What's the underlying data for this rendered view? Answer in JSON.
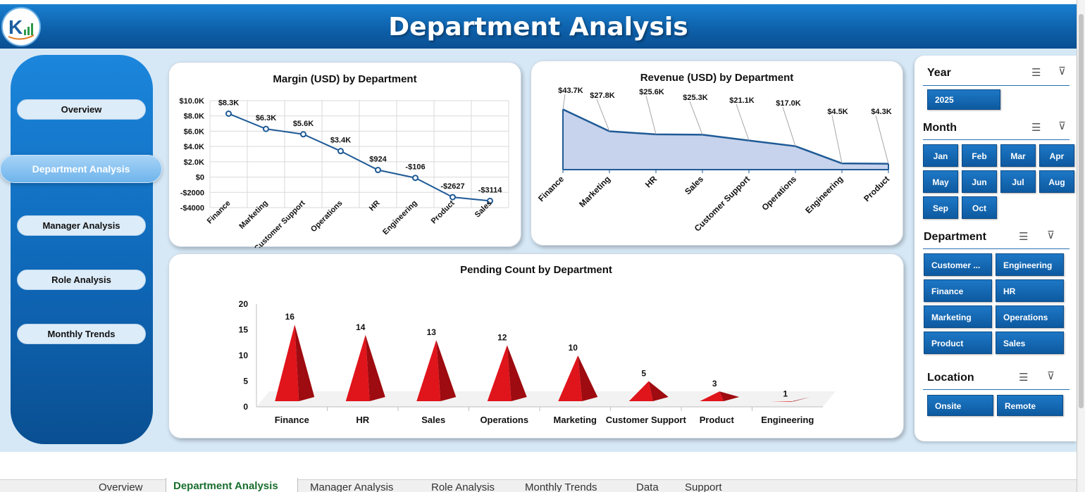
{
  "header": {
    "title": "Department Analysis"
  },
  "nav": {
    "items": [
      {
        "label": "Overview"
      },
      {
        "label": "Department Analysis"
      },
      {
        "label": "Manager Analysis"
      },
      {
        "label": "Role Analysis"
      },
      {
        "label": "Monthly Trends"
      }
    ]
  },
  "slicers": {
    "year": {
      "title": "Year",
      "items": [
        "2025"
      ]
    },
    "month": {
      "title": "Month",
      "items": [
        "Jan",
        "Feb",
        "Mar",
        "Apr",
        "May",
        "Jun",
        "Jul",
        "Aug",
        "Sep",
        "Oct"
      ]
    },
    "department": {
      "title": "Department",
      "items": [
        "Customer ...",
        "Engineering",
        "Finance",
        "HR",
        "Marketing",
        "Operations",
        "Product",
        "Sales"
      ]
    },
    "location": {
      "title": "Location",
      "items": [
        "Onsite",
        "Remote"
      ]
    }
  },
  "sheet_tabs": [
    "Overview",
    "Department Analysis",
    "Manager Analysis",
    "Role Analysis",
    "Monthly Trends",
    "Data",
    "Support"
  ],
  "chart_data": [
    {
      "type": "line",
      "title": "Margin (USD) by Department",
      "categories": [
        "Finance",
        "Marketing",
        "Customer Support",
        "Operations",
        "HR",
        "Engineering",
        "Product",
        "Sales"
      ],
      "values": [
        8300,
        6300,
        5600,
        3400,
        924,
        -106,
        -2627,
        -3114
      ],
      "data_labels": [
        "$8.3K",
        "$6.3K",
        "$5.6K",
        "$3.4K",
        "$924",
        "-$106",
        "-$2627",
        "-$3114"
      ],
      "y_ticks": [
        "$10.0K",
        "$8.0K",
        "$6.0K",
        "$4.0K",
        "$2.0K",
        "$0",
        "-$2000",
        "-$4000"
      ],
      "ylim": [
        -4000,
        10000
      ],
      "grid": true,
      "color": "#1f5a96"
    },
    {
      "type": "area",
      "title": "Revenue (USD) by Department",
      "categories": [
        "Finance",
        "Marketing",
        "HR",
        "Sales",
        "Customer Support",
        "Operations",
        "Engineering",
        "Product"
      ],
      "values": [
        43700,
        27800,
        25600,
        25300,
        21100,
        17000,
        4500,
        4300
      ],
      "data_labels": [
        "$43.7K",
        "$27.8K",
        "$25.6K",
        "$25.3K",
        "$21.1K",
        "$17.0K",
        "$4.5K",
        "$4.3K"
      ],
      "ylim": [
        0,
        50000
      ],
      "grid": false,
      "color": "#1f5a96",
      "fill": "#c7d3ec"
    },
    {
      "type": "bar",
      "title": "Pending Count by Department",
      "categories": [
        "Finance",
        "HR",
        "Sales",
        "Operations",
        "Marketing",
        "Customer Support",
        "Product",
        "Engineering"
      ],
      "values": [
        16,
        14,
        13,
        12,
        10,
        5,
        3,
        1
      ],
      "y_ticks": [
        "20",
        "15",
        "10",
        "5",
        "0"
      ],
      "ylim": [
        0,
        20
      ],
      "grid": false,
      "color": "#e0141b"
    }
  ]
}
